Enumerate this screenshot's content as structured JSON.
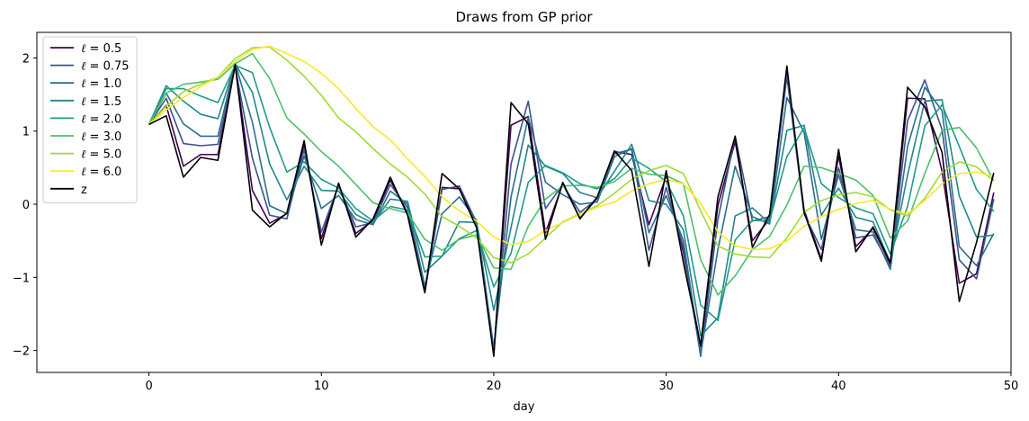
{
  "chart_data": {
    "type": "line",
    "title": "Draws from GP prior",
    "xlabel": "day",
    "ylabel": "",
    "xlim": [
      -6.5,
      50
    ],
    "ylim": [
      -2.3,
      2.35
    ],
    "xticks": [
      0,
      10,
      20,
      30,
      40,
      50
    ],
    "yticks": [
      -2,
      -1,
      0,
      1,
      2
    ],
    "xtick_labels": [
      "0",
      "10",
      "20",
      "30",
      "40",
      "50"
    ],
    "ytick_labels": [
      "−2",
      "−1",
      "0",
      "1",
      "2"
    ],
    "grid": false,
    "legend_position": "top-left",
    "x": [
      0,
      1,
      2,
      3,
      4,
      5,
      6,
      7,
      8,
      9,
      10,
      11,
      12,
      13,
      14,
      15,
      16,
      17,
      18,
      19,
      20,
      21,
      22,
      23,
      24,
      25,
      26,
      27,
      28,
      29,
      30,
      31,
      32,
      33,
      34,
      35,
      36,
      37,
      38,
      39,
      40,
      41,
      42,
      43,
      44,
      45,
      46,
      47,
      48,
      49
    ],
    "series": [
      {
        "name": "ℓ = 0.5",
        "name_parts": [
          "ℓ",
          " = 0.5"
        ],
        "color": "#440154",
        "values": [
          1.09,
          1.35,
          0.52,
          0.68,
          0.68,
          1.9,
          0.19,
          -0.26,
          -0.13,
          0.82,
          -0.47,
          0.27,
          -0.4,
          -0.22,
          0.33,
          -0.12,
          -1.18,
          0.23,
          0.21,
          -0.27,
          -2.03,
          1.08,
          1.2,
          -0.39,
          0.28,
          -0.19,
          0.08,
          0.72,
          0.68,
          -0.28,
          0.38,
          -0.66,
          -1.95,
          -0.02,
          0.86,
          -0.5,
          -0.2,
          1.8,
          -0.08,
          -0.75,
          0.66,
          -0.58,
          -0.33,
          -0.82,
          1.45,
          1.44,
          0.45,
          -1.08,
          -0.95,
          0.16
        ]
      },
      {
        "name": "ℓ = 0.75",
        "name_parts": [
          "ℓ",
          " = 0.75"
        ],
        "color": "#3b528b",
        "values": [
          1.09,
          1.45,
          0.83,
          0.8,
          0.82,
          1.88,
          0.63,
          -0.15,
          -0.2,
          0.75,
          -0.38,
          0.26,
          -0.31,
          -0.25,
          0.27,
          -0.05,
          -1.21,
          0.2,
          0.25,
          -0.25,
          -2.01,
          0.55,
          1.41,
          -0.06,
          0.27,
          -0.11,
          0.07,
          0.69,
          0.75,
          -0.63,
          0.23,
          -0.59,
          -2.08,
          -0.21,
          0.93,
          -0.23,
          -0.17,
          1.75,
          -0.13,
          -0.62,
          0.5,
          -0.46,
          -0.42,
          -0.85,
          1.14,
          1.7,
          1.02,
          -0.76,
          -1.02,
          0.07
        ]
      },
      {
        "name": "ℓ = 1.0",
        "name_parts": [
          "ℓ",
          " = 1.0"
        ],
        "color": "#2c6e8e",
        "values": [
          1.09,
          1.52,
          1.1,
          0.93,
          0.93,
          1.93,
          1.12,
          -0.02,
          -0.13,
          0.66,
          -0.06,
          0.12,
          -0.21,
          -0.28,
          0.18,
          0.0,
          -1.12,
          -0.13,
          0.1,
          -0.22,
          -1.97,
          0.1,
          1.19,
          0.3,
          0.13,
          0.0,
          0.03,
          0.65,
          0.76,
          -0.39,
          0.12,
          -0.5,
          -2.05,
          -0.62,
          0.52,
          -0.17,
          -0.27,
          1.46,
          0.98,
          -0.48,
          0.4,
          -0.35,
          -0.38,
          -0.89,
          0.79,
          1.6,
          1.28,
          -0.58,
          -0.84,
          -0.4
        ]
      },
      {
        "name": "ℓ = 1.5",
        "name_parts": [
          "ℓ",
          " = 1.5"
        ],
        "color": "#25858e",
        "values": [
          1.09,
          1.62,
          1.41,
          1.23,
          1.17,
          1.92,
          1.53,
          0.55,
          0.06,
          0.52,
          0.19,
          0.18,
          -0.14,
          -0.26,
          0.07,
          0.04,
          -0.93,
          -0.71,
          -0.24,
          -0.25,
          -1.45,
          -0.32,
          0.81,
          0.52,
          0.42,
          0.16,
          0.09,
          0.45,
          0.82,
          0.05,
          0.0,
          -0.35,
          -1.8,
          -1.55,
          -0.16,
          -0.05,
          -0.26,
          1.01,
          1.08,
          -0.15,
          0.22,
          -0.18,
          -0.24,
          -0.8,
          0.4,
          1.41,
          1.43,
          0.11,
          -0.45,
          -0.42
        ]
      },
      {
        "name": "ℓ = 2.0",
        "name_parts": [
          "ℓ",
          " = 2.0"
        ],
        "color": "#1e9c89",
        "values": [
          1.09,
          1.58,
          1.58,
          1.48,
          1.39,
          1.9,
          1.8,
          1.05,
          0.44,
          0.58,
          0.34,
          0.22,
          -0.06,
          -0.23,
          -0.03,
          -0.08,
          -0.72,
          -0.71,
          -0.47,
          -0.36,
          -1.13,
          -0.67,
          0.3,
          0.53,
          0.43,
          0.28,
          0.21,
          0.35,
          0.63,
          0.49,
          0.31,
          -0.16,
          -1.38,
          -1.59,
          -0.49,
          -0.22,
          -0.23,
          0.65,
          1.05,
          0.28,
          0.09,
          -0.05,
          -0.13,
          -0.68,
          -0.03,
          1.07,
          1.36,
          0.79,
          0.2,
          -0.1
        ]
      },
      {
        "name": "ℓ = 3.0",
        "name_parts": [
          "ℓ",
          " = 3.0"
        ],
        "color": "#4ac16d",
        "values": [
          1.09,
          1.52,
          1.64,
          1.67,
          1.71,
          1.92,
          2.06,
          1.72,
          1.18,
          0.96,
          0.72,
          0.52,
          0.27,
          0.02,
          -0.06,
          -0.12,
          -0.48,
          -0.63,
          -0.48,
          -0.42,
          -0.87,
          -0.89,
          -0.3,
          0.07,
          0.25,
          0.26,
          0.23,
          0.31,
          0.49,
          0.41,
          0.39,
          0.28,
          -0.76,
          -1.24,
          -0.98,
          -0.62,
          -0.44,
          -0.01,
          0.52,
          0.5,
          0.42,
          0.33,
          0.12,
          -0.46,
          -0.23,
          0.42,
          1.01,
          1.05,
          0.77,
          0.32
        ]
      },
      {
        "name": "ℓ = 5.0",
        "name_parts": [
          "ℓ",
          " = 5.0"
        ],
        "color": "#a2da37",
        "values": [
          1.09,
          1.34,
          1.54,
          1.64,
          1.74,
          1.99,
          2.14,
          2.15,
          1.97,
          1.75,
          1.49,
          1.18,
          0.99,
          0.76,
          0.55,
          0.37,
          0.14,
          -0.17,
          -0.3,
          -0.46,
          -0.73,
          -0.8,
          -0.68,
          -0.46,
          -0.24,
          -0.13,
          -0.02,
          0.15,
          0.34,
          0.46,
          0.53,
          0.42,
          -0.09,
          -0.57,
          -0.68,
          -0.72,
          -0.73,
          -0.46,
          -0.11,
          0.05,
          0.13,
          0.16,
          0.1,
          -0.08,
          -0.16,
          0.08,
          0.44,
          0.58,
          0.51,
          0.32
        ]
      },
      {
        "name": "ℓ = 6.0",
        "name_parts": [
          "ℓ",
          " = 6.0"
        ],
        "color": "#fde725",
        "values": [
          1.09,
          1.29,
          1.46,
          1.61,
          1.74,
          1.95,
          2.12,
          2.16,
          2.06,
          1.95,
          1.79,
          1.58,
          1.31,
          1.06,
          0.88,
          0.62,
          0.38,
          0.1,
          -0.09,
          -0.23,
          -0.45,
          -0.55,
          -0.51,
          -0.36,
          -0.25,
          -0.14,
          -0.04,
          0.03,
          0.18,
          0.28,
          0.34,
          0.28,
          0.01,
          -0.38,
          -0.57,
          -0.62,
          -0.61,
          -0.5,
          -0.3,
          -0.17,
          -0.07,
          0.01,
          0.05,
          -0.07,
          -0.13,
          0.05,
          0.28,
          0.42,
          0.44,
          0.38
        ]
      },
      {
        "name": "z",
        "color": "#000000",
        "values": [
          1.09,
          1.21,
          0.37,
          0.64,
          0.6,
          1.91,
          -0.08,
          -0.31,
          -0.12,
          0.87,
          -0.56,
          0.29,
          -0.45,
          -0.2,
          0.37,
          -0.15,
          -1.21,
          0.42,
          0.21,
          -0.32,
          -2.08,
          1.39,
          1.1,
          -0.48,
          0.3,
          -0.2,
          0.1,
          0.73,
          0.46,
          -0.85,
          0.46,
          -0.8,
          -1.93,
          0.1,
          0.93,
          -0.59,
          -0.14,
          1.89,
          -0.11,
          -0.78,
          0.75,
          -0.65,
          -0.31,
          -0.8,
          1.6,
          1.33,
          0.71,
          -1.33,
          -0.52,
          0.43
        ]
      }
    ]
  }
}
